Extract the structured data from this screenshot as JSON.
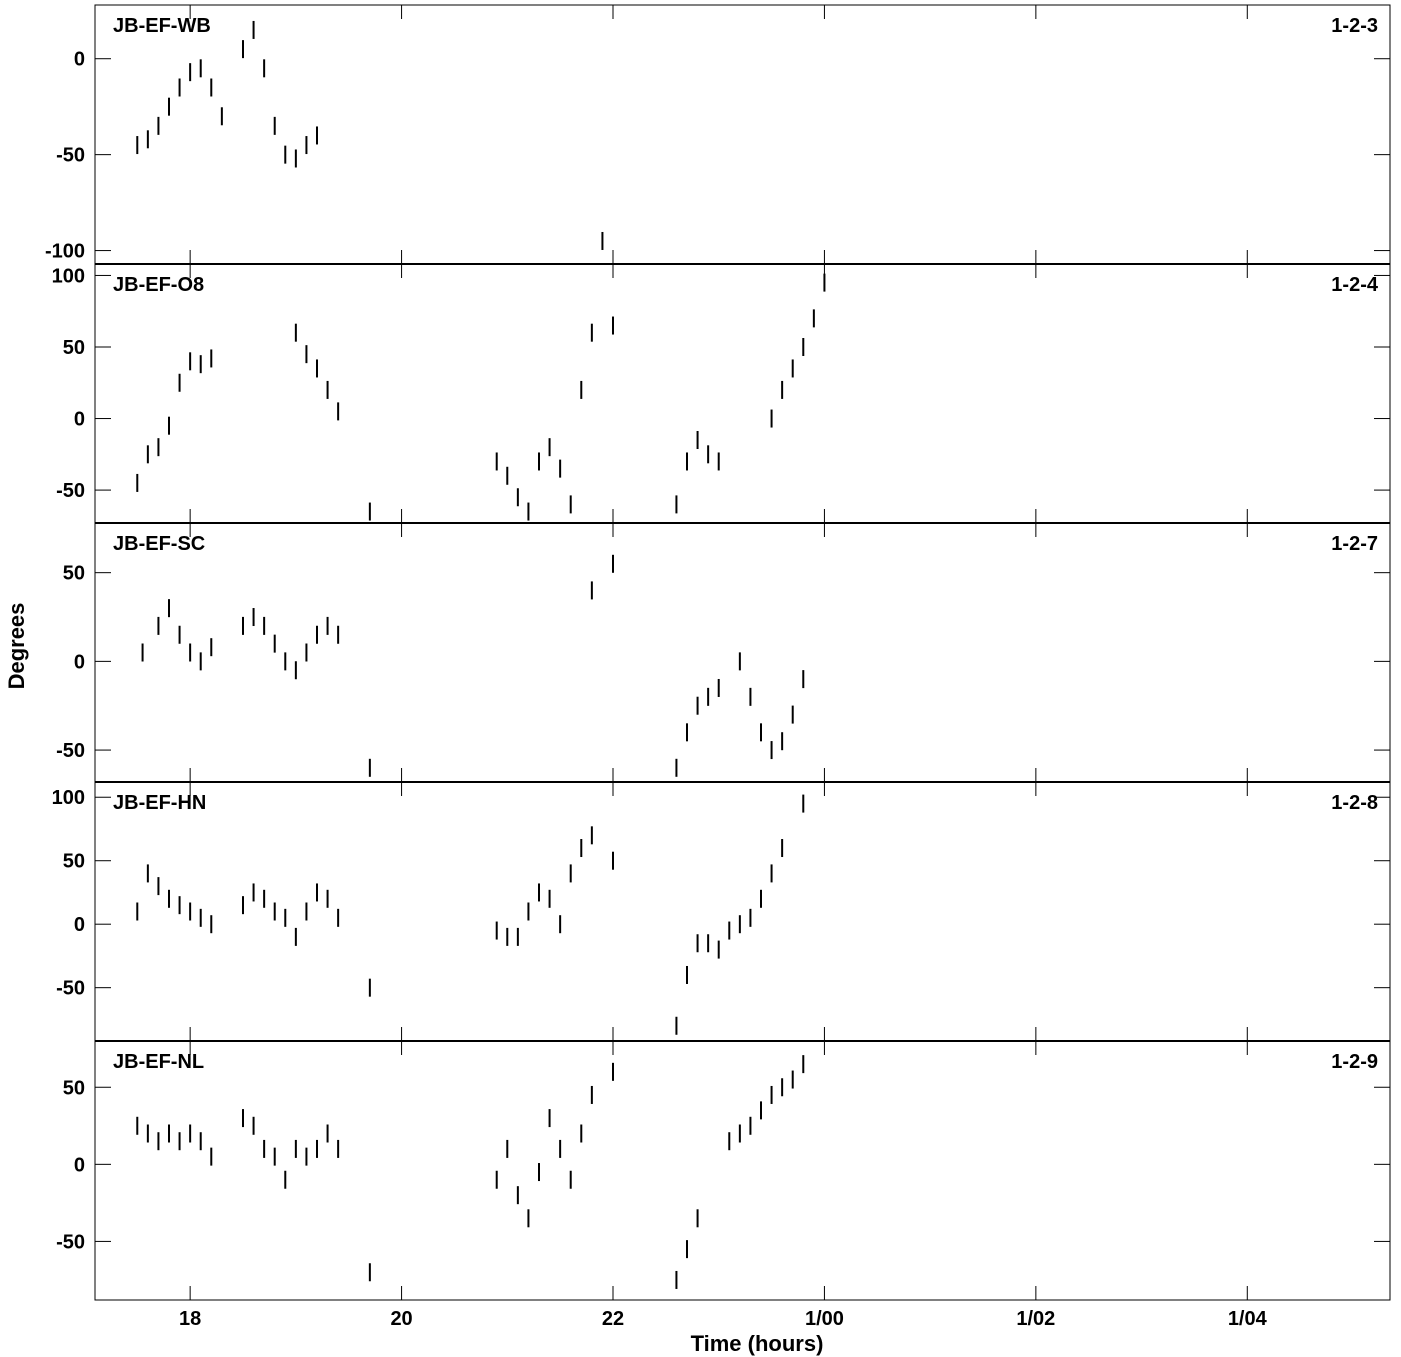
{
  "chart_data": [
    {
      "type": "scatter",
      "title": "JB-EF-WB",
      "label_right": "1-2-3",
      "ylim": [
        -107,
        28
      ],
      "yticks": [
        0,
        -50,
        -100
      ],
      "ytick_labels": [
        "0",
        "-50",
        "-100"
      ],
      "series": [
        {
          "x": [
            17.5,
            17.6,
            17.7,
            17.8,
            17.9,
            18.0,
            18.1,
            18.2,
            18.3,
            18.5,
            18.6,
            18.7,
            18.8,
            18.9,
            19.0,
            19.1,
            19.2,
            21.9
          ],
          "values": [
            -45,
            -42,
            -35,
            -25,
            -15,
            -7,
            -5,
            -15,
            -30,
            5,
            15,
            -5,
            -35,
            -50,
            -52,
            -45,
            -40,
            -95
          ]
        }
      ]
    },
    {
      "type": "scatter",
      "title": "JB-EF-O8",
      "label_right": "1-2-4",
      "ylim": [
        -73,
        108
      ],
      "yticks": [
        100,
        50,
        0,
        -50
      ],
      "ytick_labels": [
        "100",
        "50",
        "0",
        "-50"
      ],
      "series": [
        {
          "x": [
            17.5,
            17.6,
            17.7,
            17.8,
            17.9,
            18.0,
            18.1,
            18.2,
            19.0,
            19.1,
            19.2,
            19.3,
            19.4,
            19.7,
            20.9,
            21.0,
            21.1,
            21.2,
            21.3,
            21.4,
            21.5,
            21.6,
            21.7,
            21.8,
            22.0,
            22.6,
            22.7,
            22.8,
            22.9,
            23.0,
            23.5,
            23.6,
            23.7,
            23.8,
            23.9,
            24.0
          ],
          "values": [
            -45,
            -25,
            -20,
            -5,
            25,
            40,
            38,
            42,
            60,
            45,
            35,
            20,
            5,
            -65,
            -30,
            -40,
            -55,
            -65,
            -30,
            -20,
            -35,
            -60,
            20,
            60,
            65,
            -60,
            -30,
            -15,
            -25,
            -30,
            0,
            20,
            35,
            50,
            70,
            95
          ]
        }
      ]
    },
    {
      "type": "scatter",
      "title": "JB-EF-SC",
      "label_right": "1-2-7",
      "ylim": [
        -68,
        78
      ],
      "yticks": [
        50,
        0,
        -50
      ],
      "ytick_labels": [
        "50",
        "0",
        "-50"
      ],
      "series": [
        {
          "x": [
            17.55,
            17.7,
            17.8,
            17.9,
            18.0,
            18.1,
            18.2,
            18.5,
            18.6,
            18.7,
            18.8,
            18.9,
            19.0,
            19.1,
            19.2,
            19.3,
            19.4,
            19.7,
            21.8,
            22.0,
            22.6,
            22.7,
            22.8,
            22.9,
            23.0,
            23.2,
            23.3,
            23.4,
            23.5,
            23.6,
            23.7,
            23.8
          ],
          "values": [
            5,
            20,
            30,
            15,
            5,
            0,
            8,
            20,
            25,
            20,
            10,
            0,
            -5,
            5,
            15,
            20,
            15,
            -60,
            40,
            55,
            -60,
            -40,
            -25,
            -20,
            -15,
            0,
            -20,
            -40,
            -50,
            -45,
            -30,
            -10
          ]
        }
      ]
    },
    {
      "type": "scatter",
      "title": "JB-EF-HN",
      "label_right": "1-2-8",
      "ylim": [
        -92,
        112
      ],
      "yticks": [
        100,
        50,
        0,
        -50
      ],
      "ytick_labels": [
        "100",
        "50",
        "0",
        "-50"
      ],
      "series": [
        {
          "x": [
            17.5,
            17.6,
            17.7,
            17.8,
            17.9,
            18.0,
            18.1,
            18.2,
            18.5,
            18.6,
            18.7,
            18.8,
            18.9,
            19.0,
            19.1,
            19.2,
            19.3,
            19.4,
            19.7,
            20.9,
            21.0,
            21.1,
            21.2,
            21.3,
            21.4,
            21.5,
            21.6,
            21.7,
            21.8,
            22.0,
            22.6,
            22.7,
            22.8,
            22.9,
            23.0,
            23.1,
            23.2,
            23.3,
            23.4,
            23.5,
            23.6,
            23.8
          ],
          "values": [
            10,
            40,
            30,
            20,
            15,
            10,
            5,
            0,
            15,
            25,
            20,
            10,
            5,
            -10,
            10,
            25,
            20,
            5,
            -50,
            -5,
            -10,
            -10,
            10,
            25,
            20,
            0,
            40,
            60,
            70,
            50,
            -80,
            -40,
            -15,
            -15,
            -20,
            -5,
            0,
            5,
            20,
            40,
            60,
            95
          ]
        }
      ]
    },
    {
      "type": "scatter",
      "title": "JB-EF-NL",
      "label_right": "1-2-9",
      "ylim": [
        -88,
        80
      ],
      "yticks": [
        50,
        0,
        -50
      ],
      "ytick_labels": [
        "50",
        "0",
        "-50"
      ],
      "series": [
        {
          "x": [
            17.5,
            17.6,
            17.7,
            17.8,
            17.9,
            18.0,
            18.1,
            18.2,
            18.5,
            18.6,
            18.7,
            18.8,
            18.9,
            19.0,
            19.1,
            19.2,
            19.3,
            19.4,
            19.7,
            20.9,
            21.0,
            21.1,
            21.2,
            21.3,
            21.4,
            21.5,
            21.6,
            21.7,
            21.8,
            22.0,
            22.6,
            22.7,
            22.8,
            23.1,
            23.2,
            23.3,
            23.4,
            23.5,
            23.6,
            23.7,
            23.8
          ],
          "values": [
            25,
            20,
            15,
            20,
            15,
            20,
            15,
            5,
            30,
            25,
            10,
            5,
            -10,
            10,
            5,
            10,
            20,
            10,
            -70,
            -10,
            10,
            -20,
            -35,
            -5,
            30,
            10,
            -10,
            20,
            45,
            60,
            -75,
            -55,
            -35,
            15,
            20,
            25,
            35,
            45,
            50,
            55,
            65
          ]
        }
      ]
    }
  ],
  "xaxis": {
    "label": "Time (hours)",
    "xlim": [
      17.1,
      29.35
    ],
    "ticks": [
      18,
      20,
      22,
      24,
      26,
      28
    ],
    "tick_labels": [
      "18",
      "20",
      "22",
      "1/00",
      "1/02",
      "1/04"
    ]
  },
  "yaxis": {
    "label": "Degrees"
  }
}
